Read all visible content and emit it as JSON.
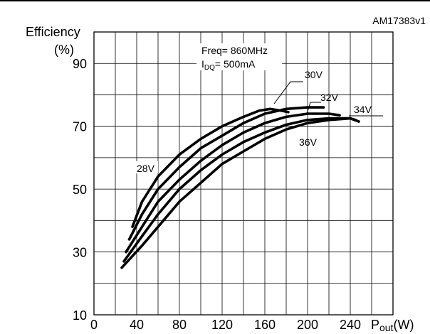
{
  "chart_data": {
    "type": "line",
    "code": "AM17383v1",
    "ylabel_line1": "Efficiency",
    "ylabel_line2": "(%)",
    "xlabel_main": "P",
    "xlabel_sub": "out",
    "xlabel_unit": "(W)",
    "annotation_freq": "Freq= 860MHz",
    "annotation_idq_main": "I",
    "annotation_idq_sub": "DQ",
    "annotation_idq_value": "= 500mA",
    "xlim": [
      0,
      280
    ],
    "ylim": [
      10,
      100
    ],
    "x_ticks": [
      0,
      40,
      80,
      120,
      160,
      200,
      240
    ],
    "y_ticks": [
      10,
      30,
      50,
      70,
      90
    ],
    "grid": true,
    "series": [
      {
        "name": "28V",
        "points": [
          [
            36,
            38
          ],
          [
            45,
            46
          ],
          [
            60,
            54
          ],
          [
            80,
            61
          ],
          [
            100,
            66
          ],
          [
            120,
            70
          ],
          [
            140,
            73
          ],
          [
            155,
            75
          ],
          [
            165,
            75.5
          ],
          [
            175,
            75
          ],
          [
            182,
            74.5
          ]
        ]
      },
      {
        "name": "30V",
        "points": [
          [
            33,
            34
          ],
          [
            45,
            42
          ],
          [
            60,
            50
          ],
          [
            80,
            57
          ],
          [
            100,
            63
          ],
          [
            120,
            67
          ],
          [
            140,
            71
          ],
          [
            160,
            74
          ],
          [
            180,
            75.5
          ],
          [
            200,
            76
          ],
          [
            215,
            76
          ]
        ]
      },
      {
        "name": "32V",
        "points": [
          [
            30,
            30
          ],
          [
            45,
            38
          ],
          [
            60,
            46
          ],
          [
            80,
            53
          ],
          [
            100,
            59
          ],
          [
            120,
            64
          ],
          [
            140,
            68
          ],
          [
            160,
            71
          ],
          [
            180,
            73
          ],
          [
            200,
            74
          ],
          [
            220,
            74
          ],
          [
            230,
            73.5
          ]
        ]
      },
      {
        "name": "34V",
        "points": [
          [
            28,
            27
          ],
          [
            45,
            35
          ],
          [
            60,
            42
          ],
          [
            80,
            50
          ],
          [
            100,
            56
          ],
          [
            120,
            61
          ],
          [
            140,
            65
          ],
          [
            160,
            68
          ],
          [
            180,
            70.5
          ],
          [
            200,
            72
          ],
          [
            220,
            72.5
          ],
          [
            240,
            72.5
          ],
          [
            248,
            71.5
          ]
        ]
      },
      {
        "name": "36V",
        "points": [
          [
            26,
            25
          ],
          [
            45,
            32
          ],
          [
            60,
            38
          ],
          [
            80,
            46
          ],
          [
            100,
            52
          ],
          [
            120,
            58
          ],
          [
            140,
            62
          ],
          [
            160,
            66
          ],
          [
            180,
            69
          ],
          [
            200,
            71
          ],
          [
            220,
            72
          ],
          [
            240,
            72.5
          ],
          [
            245,
            72
          ]
        ]
      }
    ]
  }
}
